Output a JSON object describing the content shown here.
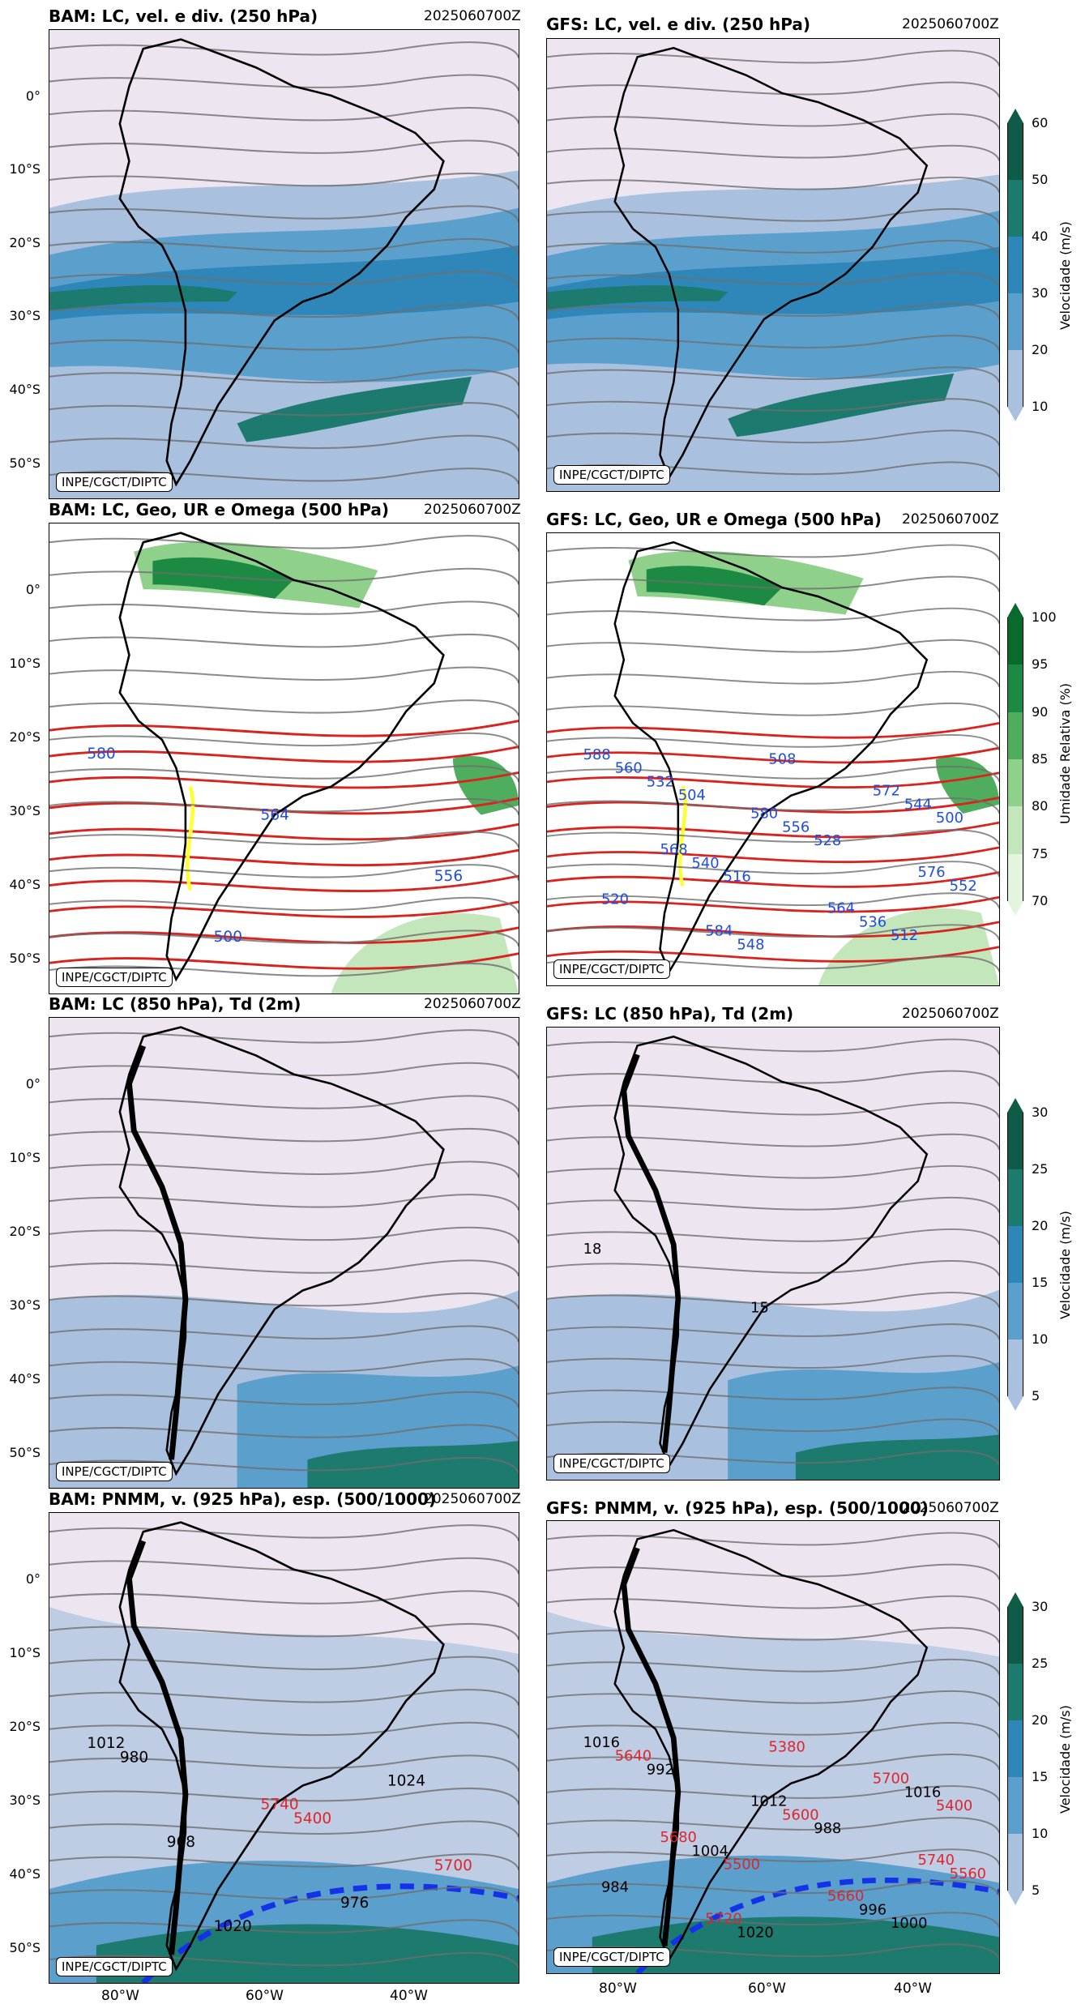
{
  "colors": {
    "wind_10": "#ede6f0",
    "wind_20": "#a9c0de",
    "wind_30": "#5b9fcd",
    "wind_40": "#2e86b9",
    "wind_50": "#1d7a6e",
    "wind_60": "#0e5b47",
    "rh_70": "#ffffff",
    "rh_75": "#e4f5df",
    "rh_80": "#c3e6ba",
    "rh_85": "#8fd08a",
    "rh_90": "#4fae5d",
    "rh_95": "#1d8a44",
    "rh_100": "#0a6a2d",
    "height_contour": "#d9231f",
    "omega_contour": "#ffff33",
    "thickness_contour": "#e0242a",
    "thickness_label_blue": "#1f4de0"
  },
  "panels": [
    {
      "id": "bam-250",
      "title": "BAM: LC, vel. e div. (250 hPa)",
      "date": "2025060700Z",
      "credit": "INPE/CGCT/DIPTC",
      "fill": "wind",
      "contour_labels": []
    },
    {
      "id": "gfs-250",
      "title": "GFS: LC, vel. e div. (250 hPa)",
      "date": "2025060700Z",
      "credit": "INPE/CGCT/DIPTC",
      "fill": "wind",
      "contour_labels": []
    },
    {
      "id": "bam-500",
      "title": "BAM: LC, Geo, UR e Omega (500 hPa)",
      "date": "2025060700Z",
      "credit": "INPE/CGCT/DIPTC",
      "fill": "rh",
      "contour_labels": [
        "580",
        "564",
        "556",
        "500"
      ]
    },
    {
      "id": "gfs-500",
      "title": "GFS: LC, Geo, UR e Omega (500 hPa)",
      "date": "2025060700Z",
      "credit": "INPE/CGCT/DIPTC",
      "fill": "rh",
      "contour_labels": [
        "588",
        "580",
        "576",
        "584",
        "572",
        "568",
        "564",
        "560",
        "556",
        "552",
        "548",
        "544",
        "540",
        "536",
        "532",
        "528",
        "520",
        "508",
        "500",
        "516",
        "512",
        "504"
      ]
    },
    {
      "id": "bam-850",
      "title": "BAM: LC (850 hPa), Td (2m)",
      "date": "2025060700Z",
      "credit": "INPE/CGCT/DIPTC",
      "fill": "wind",
      "contour_labels": []
    },
    {
      "id": "gfs-850",
      "title": "GFS: LC (850 hPa), Td (2m)",
      "date": "2025060700Z",
      "credit": "INPE/CGCT/DIPTC",
      "fill": "wind",
      "contour_labels": [
        "18",
        "15"
      ]
    },
    {
      "id": "bam-pnmm",
      "title": "BAM: PNMM, v. (925 hPa), esp. (500/1000)",
      "date": "2025060700Z",
      "credit": "INPE/CGCT/DIPTC",
      "fill": "wind",
      "contour_labels": [
        "1012",
        "5740",
        "5700",
        "1020",
        "1024",
        "968",
        "976",
        "980",
        "5400"
      ]
    },
    {
      "id": "gfs-pnmm",
      "title": "GFS: PNMM, v. (925 hPa), esp. (500/1000)",
      "date": "2025060700Z",
      "credit": "INPE/CGCT/DIPTC",
      "fill": "wind",
      "contour_labels": [
        "1016",
        "1012",
        "5740",
        "5720",
        "5700",
        "5680",
        "5660",
        "5640",
        "5600",
        "5560",
        "1020",
        "1016",
        "1004",
        "996",
        "992",
        "988",
        "984",
        "5380",
        "5400",
        "5500",
        "1000"
      ]
    }
  ],
  "yticks_row1": [
    "0°",
    "10°S",
    "20°S",
    "30°S",
    "40°S",
    "50°S"
  ],
  "yticks_row2": [
    "0°",
    "10°S",
    "20°S",
    "30°S",
    "40°S",
    "50°S"
  ],
  "yticks_row3": [
    "0°",
    "10°S",
    "20°S",
    "30°S",
    "40°S",
    "50°S"
  ],
  "yticks_row4": [
    "0°",
    "10°S",
    "20°S",
    "30°S",
    "40°S",
    "50°S"
  ],
  "xticks": [
    "80°W",
    "60°W",
    "40°W"
  ],
  "colorbars": [
    {
      "id": "cb1",
      "label": "Velocidade (m/s)",
      "ticks": [
        "60",
        "50",
        "40",
        "30",
        "20",
        "10"
      ]
    },
    {
      "id": "cb2",
      "label": "Umidade Relativa (%)",
      "ticks": [
        "100",
        "95",
        "90",
        "85",
        "80",
        "75",
        "70"
      ]
    },
    {
      "id": "cb3",
      "label": "Velocidade (m/s)",
      "ticks": [
        "30",
        "25",
        "20",
        "15",
        "10",
        "5"
      ]
    },
    {
      "id": "cb4",
      "label": "Velocidade (m/s)",
      "ticks": [
        "30",
        "25",
        "20",
        "15",
        "10",
        "5"
      ]
    }
  ]
}
